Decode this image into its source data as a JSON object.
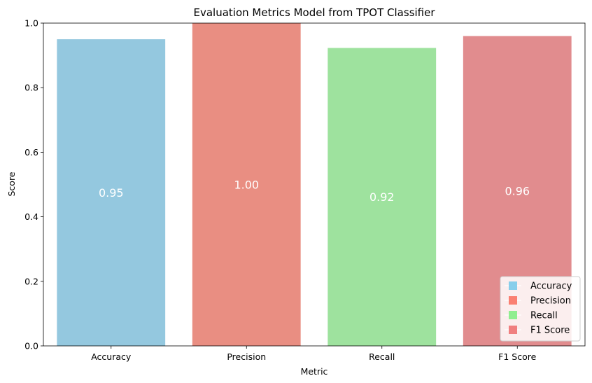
{
  "chart_data": {
    "type": "bar",
    "title": "Evaluation Metrics Model from TPOT Classifier",
    "xlabel": "Metric",
    "ylabel": "Score",
    "categories": [
      "Accuracy",
      "Precision",
      "Recall",
      "F1 Score"
    ],
    "values": [
      0.95,
      1.0,
      0.923,
      0.96
    ],
    "value_labels": [
      "0.95",
      "1.00",
      "0.92",
      "0.96"
    ],
    "colors": [
      "#94c8df",
      "#e98e82",
      "#9ee29e",
      "#e18c8e"
    ],
    "ylim": [
      0,
      1.0
    ],
    "yticks": [
      0.0,
      0.2,
      0.4,
      0.6,
      0.8,
      1.0
    ],
    "ytick_labels": [
      "0.0",
      "0.2",
      "0.4",
      "0.6",
      "0.8",
      "1.0"
    ],
    "grid": false,
    "legend": {
      "placement": "lower-right",
      "entries": [
        {
          "label": "Accuracy",
          "color": "#87ceeb"
        },
        {
          "label": "Precision",
          "color": "#fa8072"
        },
        {
          "label": "Recall",
          "color": "#90ee90"
        },
        {
          "label": "F1 Score",
          "color": "#f08080"
        }
      ]
    }
  }
}
